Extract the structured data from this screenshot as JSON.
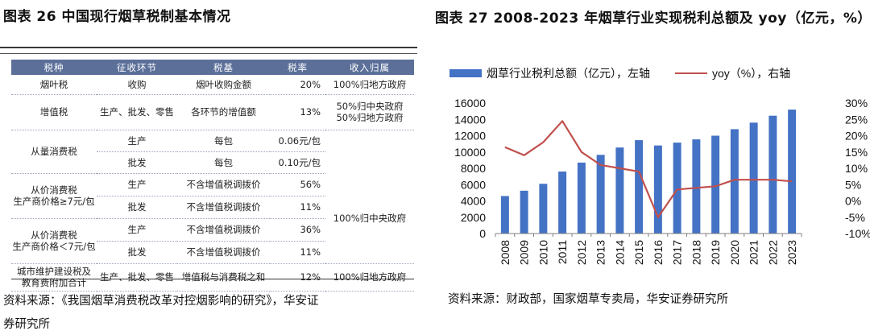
{
  "left_panel": {
    "title": "图表 26 中国现行烟草税制基本情况",
    "headers": [
      "税种",
      "征收环节",
      "税基",
      "税率",
      "收入归属"
    ],
    "rows": {
      "yanye": {
        "type": "烟叶税",
        "stage": "收购",
        "base": "烟叶收购金额",
        "rate": "20%",
        "revenue": "100%归地方政府"
      },
      "zengzhi": {
        "type": "增值税",
        "stage": "生产、批发、零售",
        "base": "各环节的增值额",
        "rate": "13%",
        "revenue_1": "50%归中央政府",
        "revenue_2": "50%归地方政府"
      },
      "congliang": {
        "type": "从量消费税",
        "stage_1": "生产",
        "base_1": "每包",
        "rate_1": "0.06元/包",
        "stage_2": "批发",
        "base_2": "每包",
        "rate_2": "0.10元/包"
      },
      "congjia_high": {
        "type_1": "从价消费税",
        "type_2": "生产商价格≥7元/包",
        "stage_1": "生产",
        "base_1": "不含增值税调拨价",
        "rate_1": "56%",
        "stage_2": "批发",
        "base_2": "不含增值税调拨价",
        "rate_2": "11%"
      },
      "congjia_low": {
        "type_1": "从价消费税",
        "type_2": "生产商价格＜7元/包",
        "stage_1": "生产",
        "base_1": "不含增值税调拨价",
        "rate_1": "36%",
        "stage_2": "批发",
        "base_2": "不含增值税调拨价",
        "rate_2": "11%"
      },
      "consumption_revenue": "100%归中央政府",
      "chengshi": {
        "type_1": "城市维护建设税及",
        "type_2": "教育费附加合计",
        "stage": "生产、批发、零售",
        "base": "增值税与消费税之和",
        "rate": "12%",
        "revenue": "100%归地方政府"
      }
    },
    "source_line1": "资料来源：《我国烟草消费税改革对控烟影响的研究》，华安证",
    "source_line2": "券研究所"
  },
  "right_panel": {
    "title": "图表 27 2008-2023 年烟草行业实现税利总额及 yoy（亿元，%）",
    "source": "资料来源：财政部，国家烟草专卖局，华安证券研究所"
  },
  "chart_data": {
    "type": "bar",
    "title": "图表 27 2008-2023 年烟草行业实现税利总额及 yoy（亿元，%）",
    "categories": [
      "2008",
      "2009",
      "2010",
      "2011",
      "2012",
      "2013",
      "2014",
      "2015",
      "2016",
      "2017",
      "2018",
      "2019",
      "2020",
      "2021",
      "2022",
      "2023"
    ],
    "series": [
      {
        "name": "烟草行业税利总额（亿元），左轴",
        "type": "bar",
        "axis": "left",
        "color": "#4472c4",
        "values": [
          4600,
          5250,
          6100,
          7600,
          8700,
          9650,
          10550,
          11450,
          10800,
          11150,
          11550,
          12000,
          12800,
          13600,
          14450,
          15200
        ]
      },
      {
        "name": "yoy（%），右轴",
        "type": "line",
        "axis": "right",
        "color": "#c0504d",
        "values": [
          16.5,
          14,
          18,
          24.5,
          15,
          11,
          10,
          9,
          -5,
          3.5,
          4,
          4.5,
          6.5,
          6.5,
          6.5,
          6
        ]
      }
    ],
    "y_left": {
      "min": 0,
      "max": 16000,
      "ticks": [
        "0",
        "2000",
        "4000",
        "6000",
        "8000",
        "10000",
        "12000",
        "14000",
        "16000"
      ]
    },
    "y_right": {
      "min": -10,
      "max": 30,
      "ticks": [
        "-10%",
        "-5%",
        "0%",
        "5%",
        "10%",
        "15%",
        "20%",
        "25%",
        "30%"
      ]
    },
    "legend_position": "top",
    "grid": false
  }
}
